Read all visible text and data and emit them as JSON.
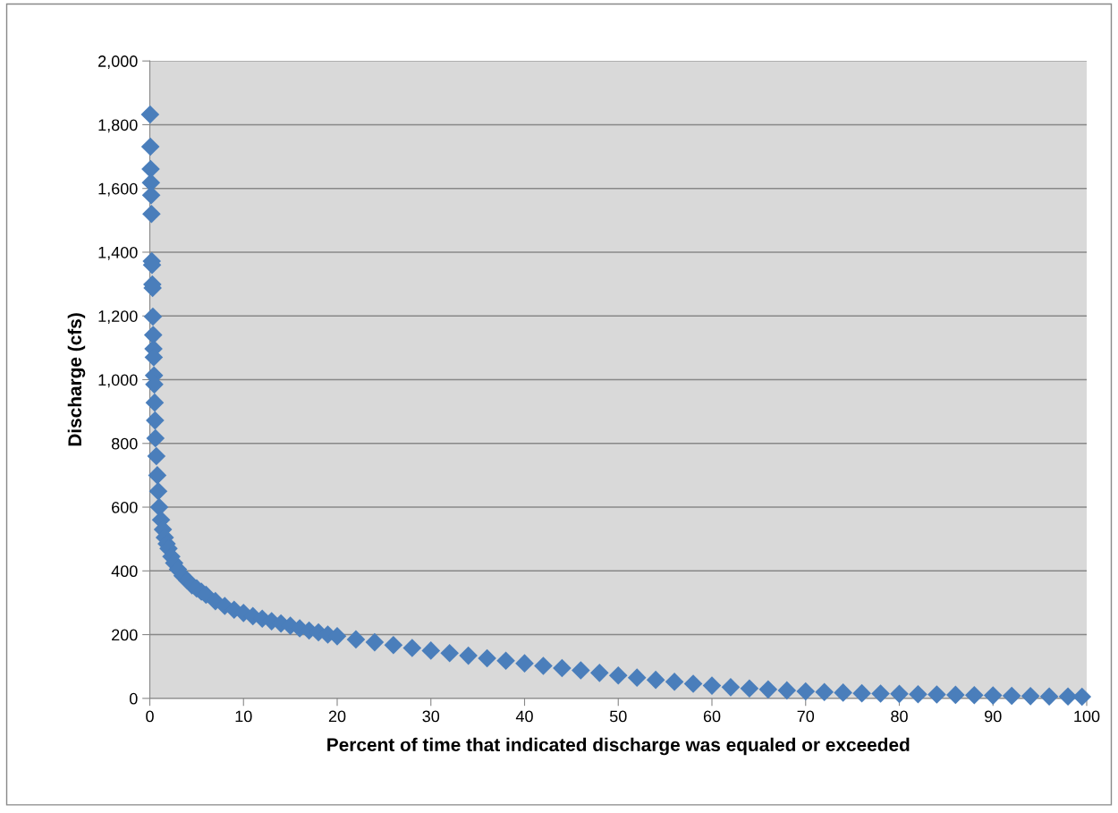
{
  "chart_data": {
    "type": "scatter",
    "xlabel": "Percent of time that indicated discharge was equaled or exceeded",
    "ylabel": "Discharge (cfs)",
    "marker": "diamond",
    "grid": "y",
    "xlim": [
      0,
      100
    ],
    "xticks": [
      0,
      10,
      20,
      30,
      40,
      50,
      60,
      70,
      80,
      90,
      100
    ],
    "ylim": [
      0,
      2000
    ],
    "yticks": [
      {
        "value": 0,
        "label": "0"
      },
      {
        "value": 200,
        "label": "200"
      },
      {
        "value": 400,
        "label": "400"
      },
      {
        "value": 600,
        "label": "600"
      },
      {
        "value": 800,
        "label": "800"
      },
      {
        "value": 1000,
        "label": "1,000"
      },
      {
        "value": 1200,
        "label": "1,200"
      },
      {
        "value": 1400,
        "label": "1,400"
      },
      {
        "value": 1600,
        "label": "1,600"
      },
      {
        "value": 1800,
        "label": "1,800"
      },
      {
        "value": 2000,
        "label": "2,000"
      }
    ],
    "series": [
      {
        "color": "#4a7ebb",
        "x": [
          0.03,
          0.06,
          0.09,
          0.12,
          0.15,
          0.18,
          0.21,
          0.24,
          0.27,
          0.3,
          0.33,
          0.36,
          0.39,
          0.42,
          0.45,
          0.48,
          0.52,
          0.56,
          0.6,
          0.7,
          0.8,
          0.9,
          1.0,
          1.2,
          1.4,
          1.6,
          1.8,
          2.0,
          2.3,
          2.6,
          3.0,
          3.5,
          4.0,
          4.5,
          5.0,
          5.5,
          6,
          7,
          8,
          9,
          10,
          11,
          12,
          13,
          14,
          15,
          16,
          17,
          18,
          19,
          20,
          22,
          24,
          26,
          28,
          30,
          32,
          34,
          36,
          38,
          40,
          42,
          44,
          46,
          48,
          50,
          52,
          54,
          56,
          58,
          60,
          62,
          64,
          66,
          68,
          70,
          72,
          74,
          76,
          78,
          80,
          82,
          84,
          86,
          88,
          90,
          92,
          94,
          96,
          98,
          99.5
        ],
        "values": [
          1832,
          1731,
          1661,
          1618,
          1579,
          1520,
          1372,
          1360,
          1299,
          1288,
          1198,
          1140,
          1097,
          1070,
          1013,
          985,
          928,
          872,
          816,
          760,
          700,
          650,
          600,
          560,
          530,
          505,
          485,
          470,
          445,
          425,
          405,
          385,
          370,
          355,
          345,
          335,
          325,
          305,
          290,
          278,
          268,
          258,
          250,
          242,
          235,
          228,
          220,
          213,
          207,
          200,
          195,
          185,
          176,
          167,
          158,
          150,
          142,
          134,
          126,
          118,
          110,
          102,
          95,
          88,
          80,
          72,
          65,
          58,
          52,
          46,
          40,
          35,
          31,
          28,
          25,
          22,
          20,
          18,
          16,
          15,
          14,
          13,
          12,
          11,
          10,
          9,
          8,
          7,
          6,
          6,
          5
        ]
      }
    ]
  }
}
